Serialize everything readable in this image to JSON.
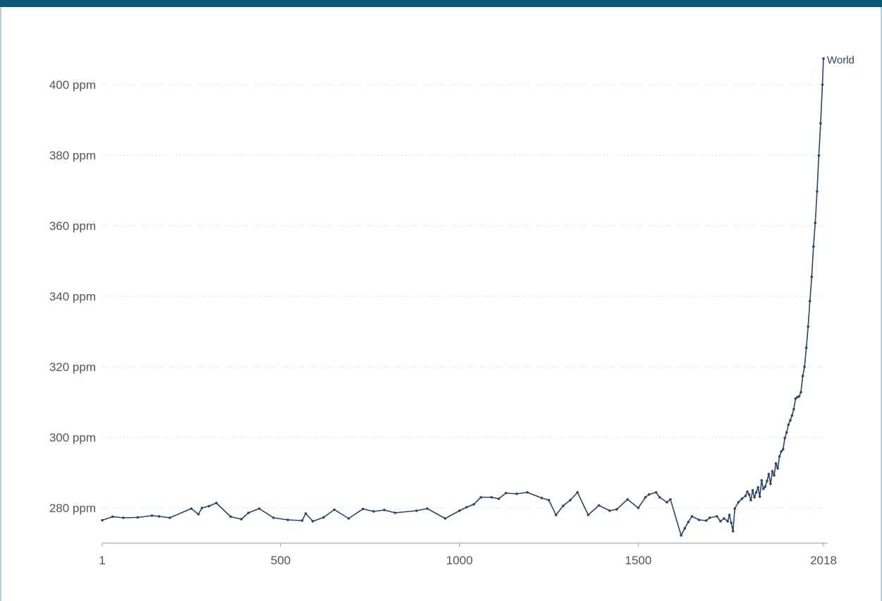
{
  "chart_data": {
    "type": "line",
    "title": "",
    "xlabel": "",
    "ylabel": "",
    "xlim": [
      1,
      2018
    ],
    "ylim": [
      272,
      408
    ],
    "x_ticks": [
      {
        "value": 1,
        "label": "1"
      },
      {
        "value": 500,
        "label": "500"
      },
      {
        "value": 1000,
        "label": "1000"
      },
      {
        "value": 1500,
        "label": "1500"
      },
      {
        "value": 2018,
        "label": "2018"
      }
    ],
    "y_ticks": [
      {
        "value": 280,
        "label": "280 ppm"
      },
      {
        "value": 300,
        "label": "300 ppm"
      },
      {
        "value": 320,
        "label": "320 ppm"
      },
      {
        "value": 340,
        "label": "340 ppm"
      },
      {
        "value": 360,
        "label": "360 ppm"
      },
      {
        "value": 380,
        "label": "380 ppm"
      },
      {
        "value": 400,
        "label": "400 ppm"
      }
    ],
    "grid": true,
    "series": [
      {
        "name": "World",
        "color": "#2e4462",
        "x": [
          1,
          30,
          60,
          100,
          140,
          160,
          190,
          250,
          270,
          280,
          300,
          320,
          360,
          390,
          410,
          440,
          480,
          520,
          560,
          570,
          590,
          620,
          650,
          690,
          730,
          760,
          790,
          820,
          880,
          910,
          960,
          1000,
          1020,
          1040,
          1060,
          1090,
          1110,
          1130,
          1160,
          1190,
          1230,
          1250,
          1270,
          1290,
          1310,
          1330,
          1360,
          1390,
          1420,
          1440,
          1470,
          1500,
          1520,
          1530,
          1550,
          1560,
          1580,
          1590,
          1620,
          1630,
          1640,
          1650,
          1670,
          1690,
          1700,
          1720,
          1730,
          1740,
          1750,
          1755,
          1760,
          1765,
          1770,
          1780,
          1790,
          1800,
          1805,
          1810,
          1815,
          1820,
          1825,
          1830,
          1835,
          1840,
          1845,
          1850,
          1855,
          1860,
          1865,
          1870,
          1875,
          1880,
          1885,
          1890,
          1895,
          1900,
          1905,
          1910,
          1915,
          1920,
          1925,
          1930,
          1935,
          1940,
          1945,
          1950,
          1955,
          1960,
          1965,
          1970,
          1975,
          1980,
          1985,
          1990,
          1995,
          2000,
          2005,
          2010,
          2015,
          2018
        ],
        "values": [
          276.5,
          277.5,
          277.2,
          277.3,
          277.8,
          277.6,
          277.2,
          279.8,
          278.2,
          280.0,
          280.5,
          281.4,
          277.5,
          276.8,
          278.6,
          279.8,
          277.2,
          276.6,
          276.4,
          278.4,
          276.2,
          277.3,
          279.5,
          277.0,
          279.7,
          279.0,
          279.4,
          278.6,
          279.2,
          279.8,
          277.0,
          279.2,
          280.2,
          281.0,
          283.0,
          283.0,
          282.6,
          284.2,
          284.0,
          284.4,
          282.8,
          282.2,
          278.0,
          280.6,
          282.2,
          284.4,
          278.0,
          280.7,
          279.2,
          279.6,
          282.4,
          280.0,
          283.0,
          283.8,
          284.4,
          283.0,
          281.6,
          282.4,
          272.2,
          274.2,
          276.0,
          277.6,
          276.6,
          276.4,
          277.2,
          277.6,
          276.2,
          277.0,
          276.2,
          278.0,
          275.8,
          273.4,
          279.8,
          281.6,
          282.6,
          283.4,
          284.6,
          283.8,
          282.2,
          285.0,
          283.0,
          284.4,
          285.8,
          283.2,
          287.8,
          285.4,
          286.0,
          287.6,
          289.6,
          286.8,
          290.4,
          289.2,
          292.6,
          291.2,
          294.6,
          296.0,
          296.6,
          299.8,
          301.4,
          303.6,
          304.8,
          306.2,
          308.0,
          311.0,
          311.4,
          311.6,
          312.8,
          317.4,
          320.0,
          325.4,
          331.4,
          338.6,
          345.5,
          354.1,
          360.8,
          369.7,
          379.9,
          389.0,
          400.0,
          407.4
        ]
      }
    ]
  }
}
